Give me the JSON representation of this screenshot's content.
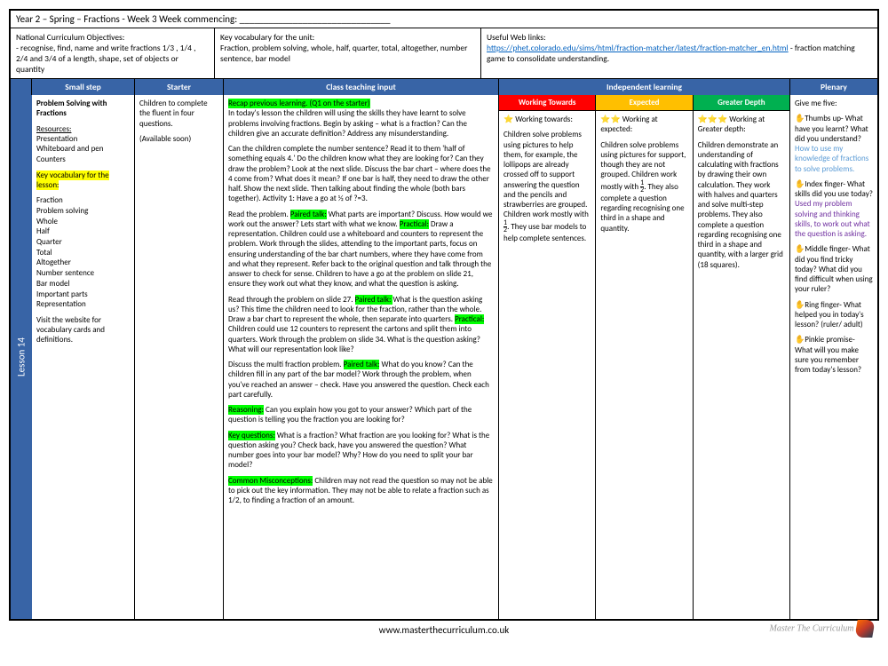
{
  "topBar": "Year 2 – Spring – Fractions - Week 3                  Week commencing: _______________________________",
  "ncObj": {
    "title": "National Curriculum Objectives:",
    "text": "- recognise, find, name and write fractions 1/3 , 1/4 , 2/4 and 3/4 of a length, shape, set of objects or quantity"
  },
  "keyVocab": {
    "title": "Key vocabulary for the unit:",
    "text": "Fraction, problem solving, whole, half, quarter, total, altogether, number sentence, bar model"
  },
  "webLinks": {
    "title": "Useful Web links:",
    "link": "https://phet.colorado.edu/sims/html/fraction-matcher/latest/fraction-matcher_en.html",
    "after": " - fraction matching game to consolidate understanding."
  },
  "headers": {
    "small": "Small step",
    "starter": "Starter",
    "teaching": "Class teaching input",
    "indep": "Independent learning",
    "plenary": "Plenary"
  },
  "lessonLabel": "Lesson 14",
  "smallStep": {
    "title": "Problem Solving with Fractions",
    "resourcesLabel": "Resources:",
    "resources": "Presentation\nWhiteboard and pen\nCounters",
    "vocabLabel": "Key vocabulary for the lesson:",
    "vocab": "Fraction\nProblem solving\nWhole\nHalf\nQuarter\nTotal\nAltogether\nNumber sentence\nBar model\nImportant parts\nRepresentation",
    "visit": "Visit the website for vocabulary cards and definitions."
  },
  "starter": {
    "text": "Children to complete the fluent in four questions.",
    "note": "(Available soon)"
  },
  "teaching": {
    "p1a": "Recap previous learning. (Q1 on the starter)",
    "p1b": "In today's lesson the children will using the skills they have learnt to solve problems involving fractions. Begin by asking – what is a fraction? Can the children give an accurate definition? Address any misunderstanding.",
    "p2": "Can the children complete the number sentence? Read it to them 'half of something equals 4.' Do the children know what they are looking for? Can they draw the problem? Look at the next slide. Discuss the bar chart – where does the 4 come from? What does it mean? If one bar is half, they need to draw the other half. Show the next slide. Then talking about finding the whole (both bars together). Activity 1: Have a go at ½ of  ?=3.",
    "p3a": "Read the problem. ",
    "p3h1": "Paired talk:",
    "p3b": " What parts are important? Discuss. How would we work out the answer? Lets start with what we know. ",
    "p3h2": "Practical:",
    "p3c": " Draw a representation. Children could use a whiteboard and counters to represent the problem. Work through the slides, attending to the important parts, focus on ensuring understanding of the bar chart numbers, where they have come from and what they represent. Refer back to the original question and talk through the answer to check for sense. Children to have a go at the problem on slide 21, ensure they work out what they know, and what the question is asking.",
    "p4a": "Read through the problem on slide 27. ",
    "p4h": "Paired talk: ",
    "p4b": " What is the question asking us? This time the children need to look for the fraction, rather than the whole. Draw a bar chart to represent the whole, then separate into quarters. ",
    "p4h2": "Practical:",
    "p4c": " Children could use 12 counters to represent the cartons and split them into quarters. Work through the problem on slide 34. What is the question asking? What will our representation look like?",
    "p5a": "Discuss the multi fraction problem. ",
    "p5h": "Paired talk:",
    "p5b": " What do you know? Can the children fill in any part of the bar model? Work through the problem, when you've reached an answer – check. Have you answered the question. Check each part carefully.",
    "p6h": "Reasoning:",
    "p6": " Can you explain how you got to your answer? Which part of the question is telling you the fraction you are looking for?",
    "p7h": "Key questions:",
    "p7": " What is a fraction? What fraction are you looking for? What is the question asking you? Check back, have you answered the question? What number goes into your bar model? Why? How do you need to split your bar model?",
    "p8h": "Common Misconceptions:",
    "p8": " Children may not read the question so may not be able to pick out the key information. They may not be able to relate a fraction such as 1/2, to finding a fraction of an amount."
  },
  "indepHeaders": {
    "wt": "Working Towards",
    "ex": "Expected",
    "gd": "Greater Depth"
  },
  "indep": {
    "wt": {
      "star": "⭐ Working towards:",
      "text": "Children solve problems using pictures to help them, for example, the lollipops are already crossed off to support answering the question and the pencils and strawberries are grouped. Children work mostly with ",
      "frac": "½",
      "after": ". They use bar models to help complete sentences."
    },
    "ex": {
      "star": "⭐⭐ Working at expected:",
      "text": "Children solve problems using pictures for support, though they are not grouped. Children work mostly with ",
      "frac": "½",
      "after": ". They also complete a question regarding recognising one third in a shape and quantity."
    },
    "gd": {
      "star": "⭐⭐⭐ Working at Greater depth:",
      "text": "Children demonstrate an understanding of calculating with fractions by drawing their own calculation. They work with halves and quarters and solve multi-step problems. They also complete a question regarding recognising one third in a shape and quantity, with a larger grid (18 squares)."
    }
  },
  "plenary": {
    "intro": "Give me five:",
    "thumb": "✋Thumbs up- What have you learnt? What did you understand?",
    "thumbBlue": "How to use my knowledge of fractions to solve problems.",
    "index": "✋Index finger- What skills did you use today?",
    "indexPurple": "Used my problem solving and thinking skills, to work out what the question is asking.",
    "middle": "✋Middle finger- What did you find tricky today? What did you find difficult when using your ruler?",
    "ring": "✋Ring finger- What helped you in today's lesson? (ruler/ adult)",
    "pinkie": "✋Pinkie promise- What will you make sure you remember from today's lesson?"
  },
  "footer": "www.masterthecurriculum.co.uk",
  "logoText": "Master The Curriculum",
  "colors": {
    "headerBlue": "#3864a6",
    "wt": "#ff0000",
    "ex": "#ffbf00",
    "gd": "#00b050",
    "hlYellow": "#ffff00",
    "hlGreen": "#00ff00",
    "link": "#0563c1",
    "blueTxt": "#5b9bd5",
    "purpleTxt": "#7030a0"
  }
}
